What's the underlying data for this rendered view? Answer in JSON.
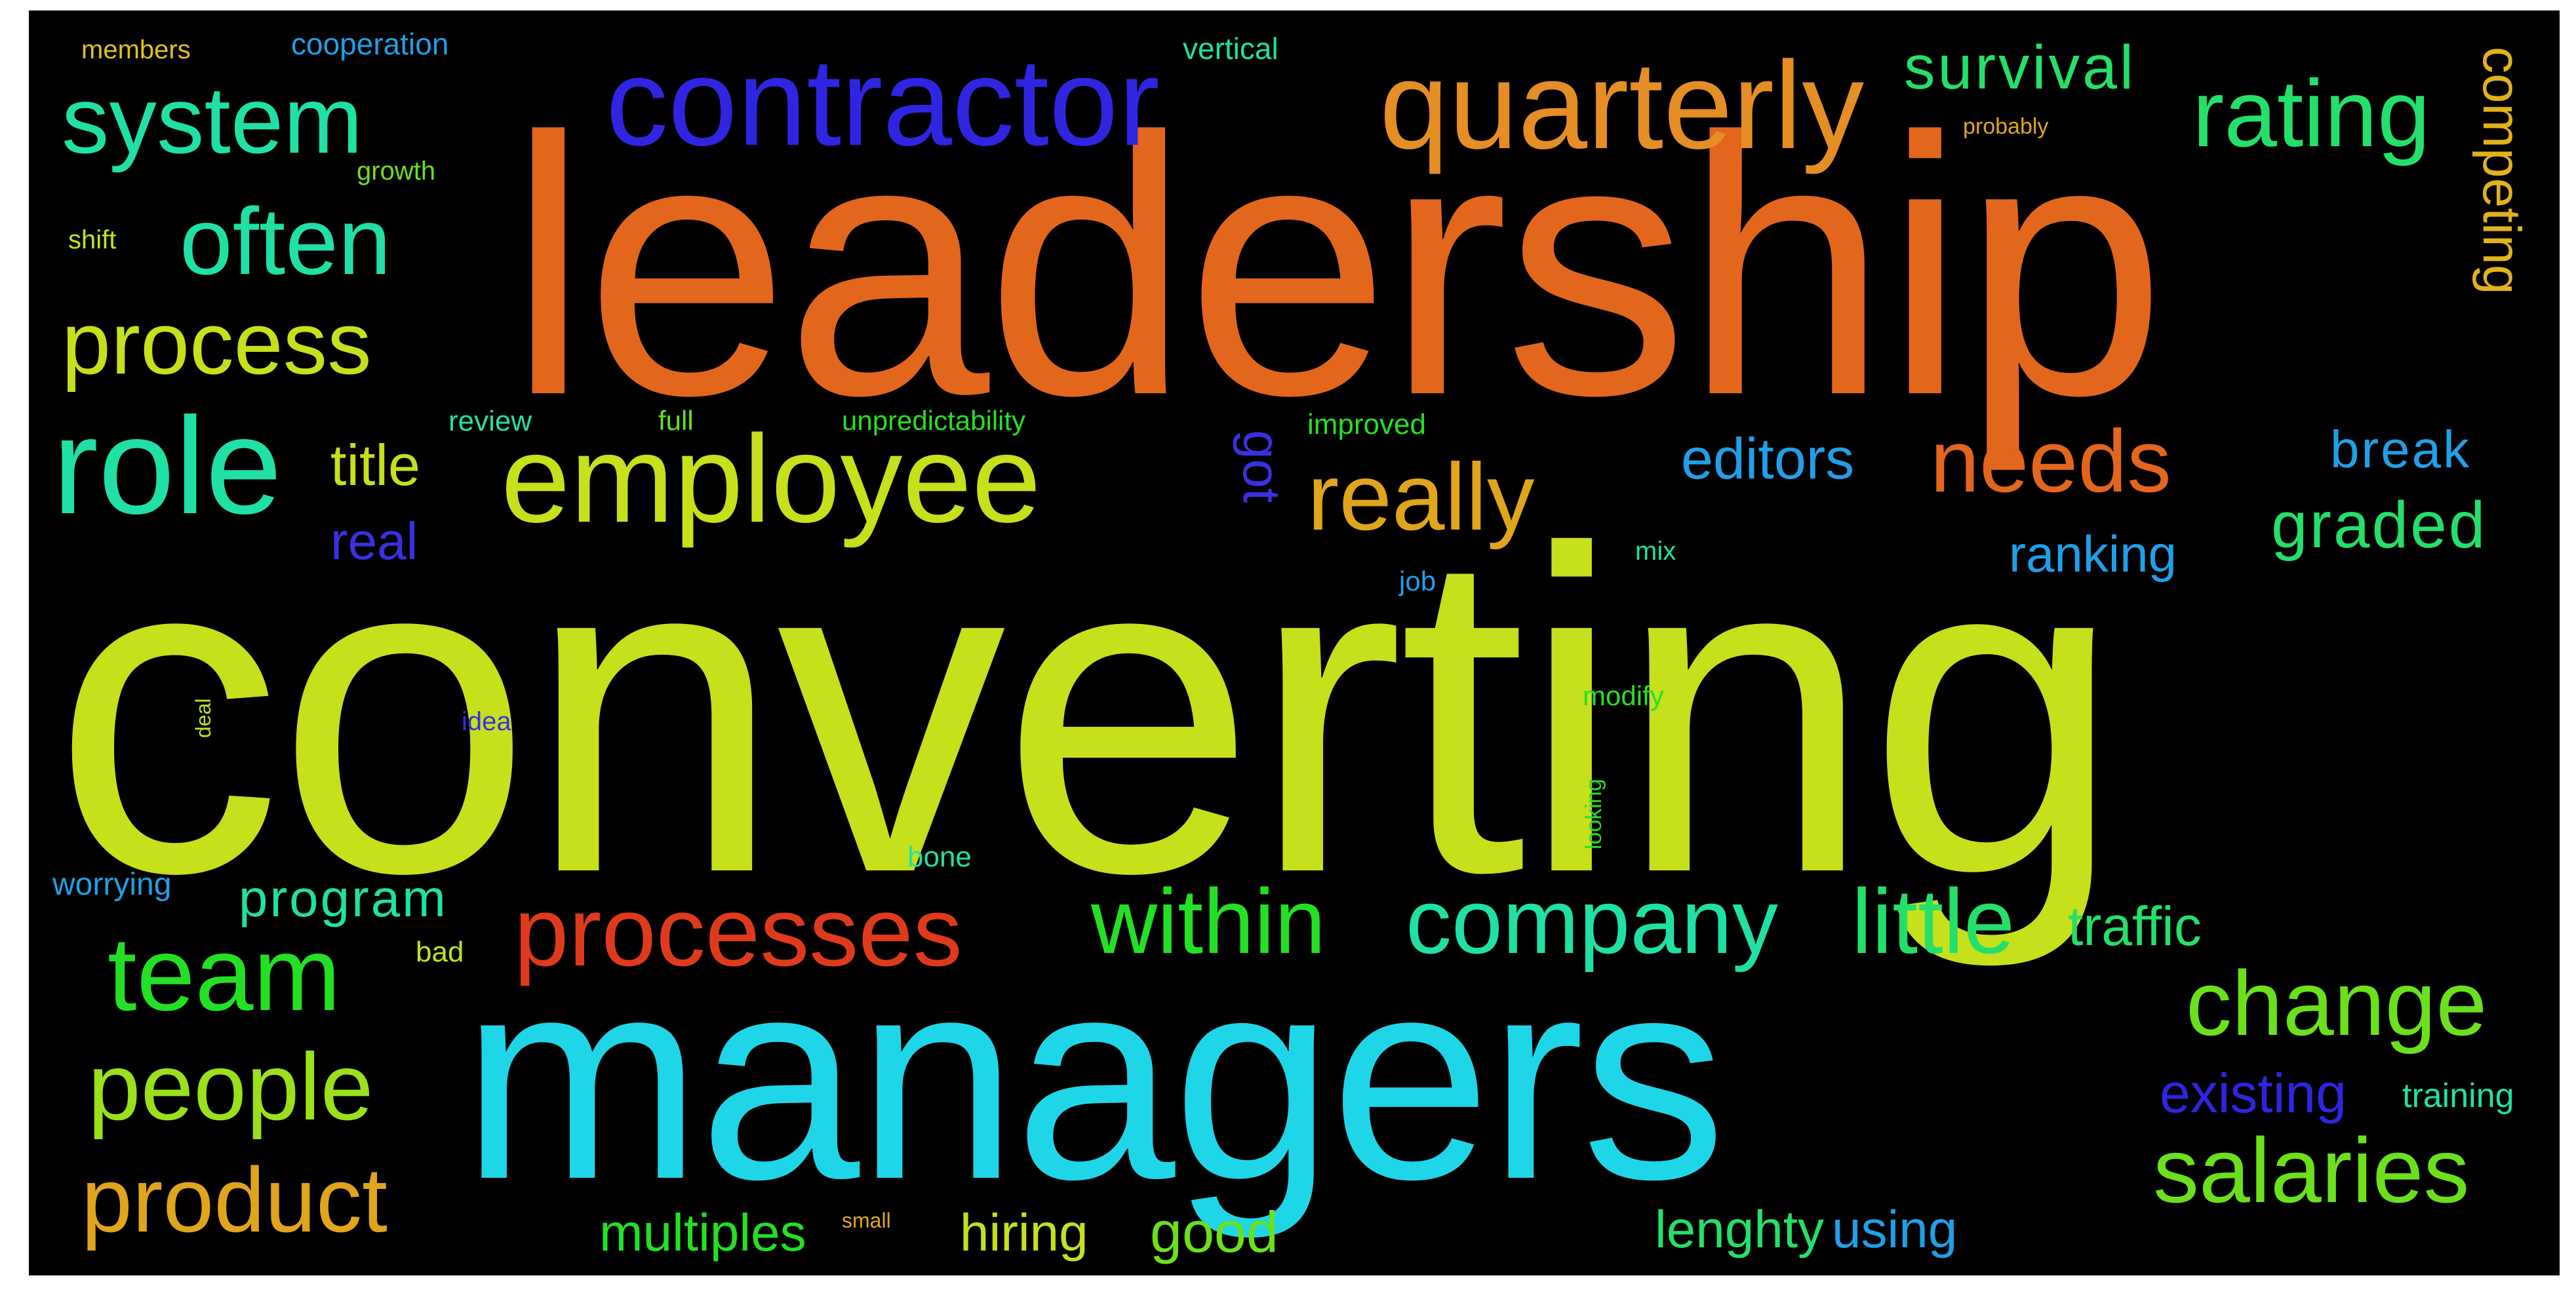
{
  "words": [
    {
      "text": "converting",
      "color": "#c6e01c"
    },
    {
      "text": "leadership",
      "color": "#e3661d"
    },
    {
      "text": "managers",
      "color": "#1fd6e8"
    },
    {
      "text": "contractor",
      "color": "#2f25e0"
    },
    {
      "text": "quarterly",
      "color": "#e58e25"
    },
    {
      "text": "employee",
      "color": "#c6e01c"
    },
    {
      "text": "role",
      "color": "#20e0a5"
    },
    {
      "text": "system",
      "color": "#20e0a5"
    },
    {
      "text": "often",
      "color": "#20e0a5"
    },
    {
      "text": "process",
      "color": "#c6e01c"
    },
    {
      "text": "rating",
      "color": "#24e06b"
    },
    {
      "text": "survival",
      "color": "#24e06b"
    },
    {
      "text": "competing",
      "color": "#e0b21c"
    },
    {
      "text": "really",
      "color": "#e0a51c"
    },
    {
      "text": "needs",
      "color": "#e3661d"
    },
    {
      "text": "editors",
      "color": "#1fa0e8"
    },
    {
      "text": "break",
      "color": "#1fa0e8"
    },
    {
      "text": "graded",
      "color": "#24e06b"
    },
    {
      "text": "ranking",
      "color": "#1fa0e8"
    },
    {
      "text": "title",
      "color": "#c6e01c"
    },
    {
      "text": "real",
      "color": "#3b30e0"
    },
    {
      "text": "got",
      "color": "#3b30e0"
    },
    {
      "text": "processes",
      "color": "#e03a1c"
    },
    {
      "text": "within",
      "color": "#24e024"
    },
    {
      "text": "company",
      "color": "#20e0a5"
    },
    {
      "text": "little",
      "color": "#24e06b"
    },
    {
      "text": "team",
      "color": "#24e024"
    },
    {
      "text": "program",
      "color": "#20e0a5"
    },
    {
      "text": "people",
      "color": "#9be01c"
    },
    {
      "text": "product",
      "color": "#e0a51c"
    },
    {
      "text": "change",
      "color": "#6be01c"
    },
    {
      "text": "salaries",
      "color": "#6be01c"
    },
    {
      "text": "existing",
      "color": "#2f25e0"
    },
    {
      "text": "training",
      "color": "#20e0a5"
    },
    {
      "text": "traffic",
      "color": "#24e06b"
    },
    {
      "text": "multiples",
      "color": "#24e024"
    },
    {
      "text": "hiring",
      "color": "#c6e01c"
    },
    {
      "text": "good",
      "color": "#6be01c"
    },
    {
      "text": "lenghty",
      "color": "#24e06b"
    },
    {
      "text": "using",
      "color": "#1fa0e8"
    },
    {
      "text": "worrying",
      "color": "#1fa0e8"
    },
    {
      "text": "bad",
      "color": "#c6e01c"
    },
    {
      "text": "bone",
      "color": "#20e0a5"
    },
    {
      "text": "members",
      "color": "#e0c21c"
    },
    {
      "text": "cooperation",
      "color": "#1fa0e8"
    },
    {
      "text": "vertical",
      "color": "#20e0a5"
    },
    {
      "text": "growth",
      "color": "#6be01c"
    },
    {
      "text": "shift",
      "color": "#c6e01c"
    },
    {
      "text": "review",
      "color": "#20e0a5"
    },
    {
      "text": "full",
      "color": "#6be01c"
    },
    {
      "text": "unpredictability",
      "color": "#24e024"
    },
    {
      "text": "improved",
      "color": "#24e024"
    },
    {
      "text": "probably",
      "color": "#e0a51c"
    },
    {
      "text": "mix",
      "color": "#20e0a5"
    },
    {
      "text": "job",
      "color": "#1fa0e8"
    },
    {
      "text": "modify",
      "color": "#24e024"
    },
    {
      "text": "idea",
      "color": "#3b30e0"
    },
    {
      "text": "looking",
      "color": "#24e024"
    },
    {
      "text": "deal",
      "color": "#c6e01c"
    },
    {
      "text": "small",
      "color": "#e0a51c"
    }
  ]
}
